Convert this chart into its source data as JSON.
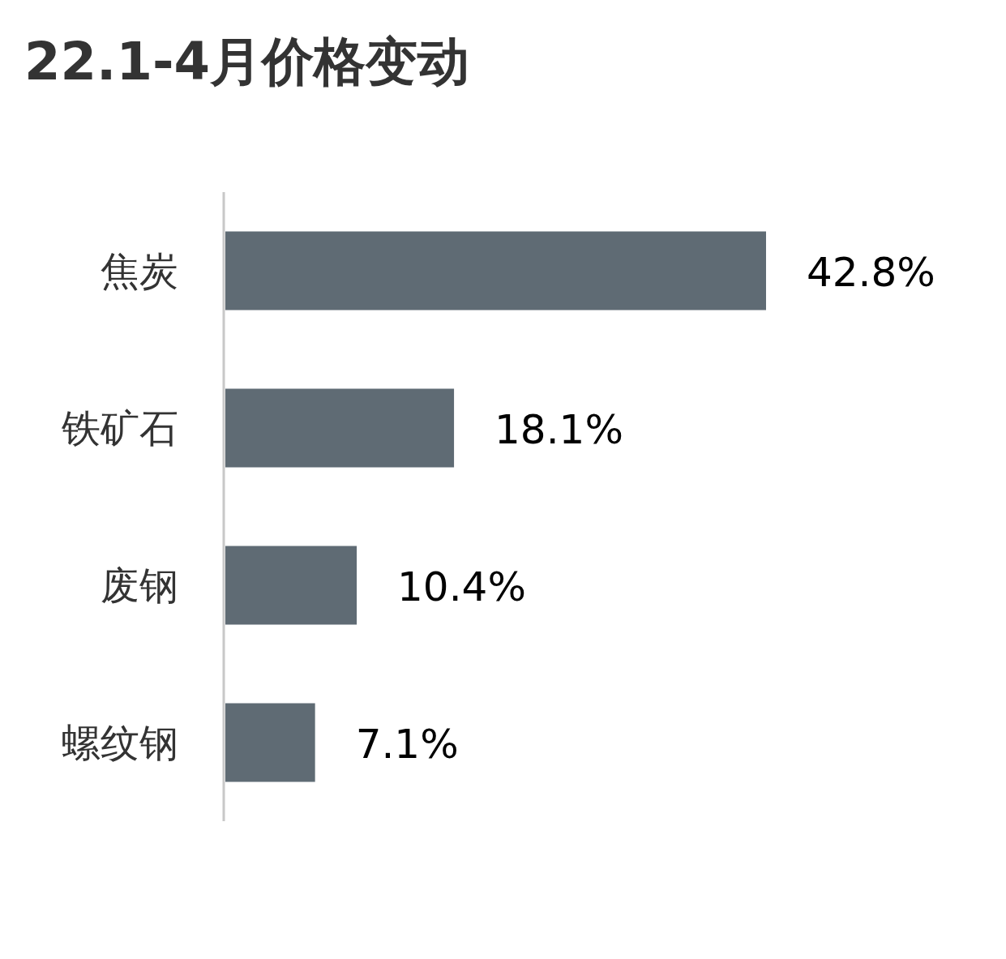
{
  "chart_data": {
    "type": "bar",
    "orientation": "horizontal",
    "title": "22.1-4月价格变动",
    "categories": [
      "焦炭",
      "铁矿石",
      "废钢",
      "螺纹钢"
    ],
    "values": [
      42.8,
      18.1,
      10.4,
      7.1
    ],
    "value_labels": [
      "42.8%",
      "18.1%",
      "10.4%",
      "7.1%"
    ],
    "color": "#5f6b74"
  }
}
